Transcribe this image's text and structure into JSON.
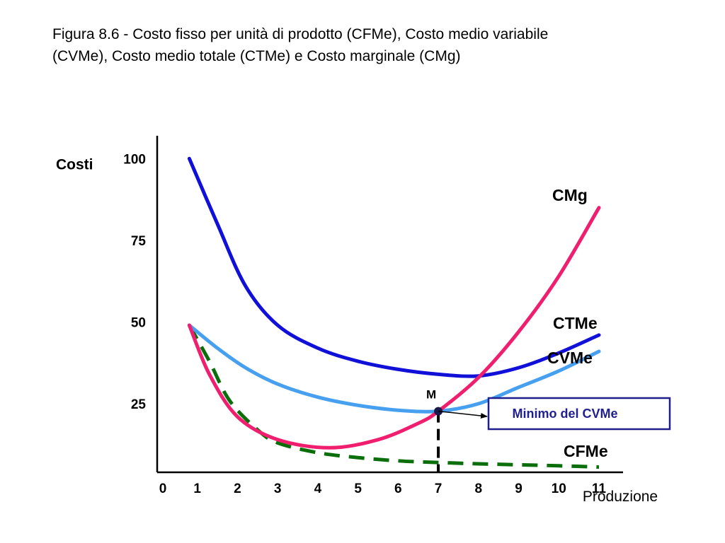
{
  "caption": {
    "line1": "Figura 8.6 - Costo fisso per unità di prodotto (CFMe), Costo medio variabile",
    "line2": "(CVMe), Costo medio totale (CTMe) e Costo marginale (CMg)"
  },
  "chart_data": {
    "type": "line",
    "title": "Figura 8.6 - Costo fisso per unità di prodotto (CFMe), Costo medio variabile (CVMe), Costo medio totale (CTMe) e Costo marginale (CMg)",
    "xlabel": "Produzione",
    "ylabel": "Costi",
    "xlim": [
      0,
      11.6
    ],
    "ylim": [
      4,
      107
    ],
    "x_ticks": [
      "0",
      "1",
      "2",
      "3",
      "4",
      "5",
      "6",
      "7",
      "8",
      "9",
      "10",
      "11"
    ],
    "y_ticks": [
      "25",
      "50",
      "75",
      "100"
    ],
    "series": [
      {
        "name": "CTMe",
        "color": "#1010d8",
        "points": [
          [
            0.8,
            100
          ],
          [
            1.5,
            80
          ],
          [
            2.2,
            61
          ],
          [
            3.0,
            49
          ],
          [
            4.0,
            42
          ],
          [
            5.0,
            38
          ],
          [
            6.0,
            35.5
          ],
          [
            7.0,
            34
          ],
          [
            8.0,
            33.5
          ],
          [
            9.0,
            36
          ],
          [
            10.0,
            40.5
          ],
          [
            11.0,
            46
          ]
        ]
      },
      {
        "name": "CVMe",
        "color": "#46a0ef",
        "points": [
          [
            0.8,
            49
          ],
          [
            1.5,
            42
          ],
          [
            2.2,
            36
          ],
          [
            3.0,
            31
          ],
          [
            4.0,
            27
          ],
          [
            5.0,
            24.5
          ],
          [
            6.0,
            23
          ],
          [
            7.0,
            22.7
          ],
          [
            8.0,
            25
          ],
          [
            9.0,
            30
          ],
          [
            10.0,
            35
          ],
          [
            11.0,
            41
          ]
        ]
      },
      {
        "name": "CMg",
        "color": "#f01e6e",
        "points": [
          [
            0.8,
            49
          ],
          [
            1.3,
            34
          ],
          [
            2.0,
            21
          ],
          [
            3.0,
            14
          ],
          [
            4.3,
            11.5
          ],
          [
            5.5,
            14
          ],
          [
            6.5,
            19
          ],
          [
            7.0,
            22.7
          ],
          [
            8.0,
            33
          ],
          [
            9.0,
            47
          ],
          [
            10.0,
            64
          ],
          [
            11.0,
            85
          ]
        ]
      },
      {
        "name": "CFMe",
        "color": "#0a6e0a",
        "dashed": true,
        "points": [
          [
            0.8,
            49
          ],
          [
            1.3,
            38
          ],
          [
            1.8,
            26
          ],
          [
            2.5,
            17
          ],
          [
            3.0,
            13
          ],
          [
            4.0,
            10
          ],
          [
            5.0,
            8.5
          ],
          [
            6.0,
            7.5
          ],
          [
            7.0,
            7
          ],
          [
            8.0,
            6.6
          ],
          [
            9.0,
            6.3
          ],
          [
            10.0,
            6
          ],
          [
            11.0,
            5.6
          ]
        ]
      }
    ],
    "points": [
      {
        "label": "M",
        "x": 7.0,
        "y": 22.7
      }
    ],
    "annotations": [
      {
        "text": "Minimo del CVMe",
        "border_color": "#1f1f8f"
      }
    ],
    "grid": false,
    "legend": "none"
  }
}
